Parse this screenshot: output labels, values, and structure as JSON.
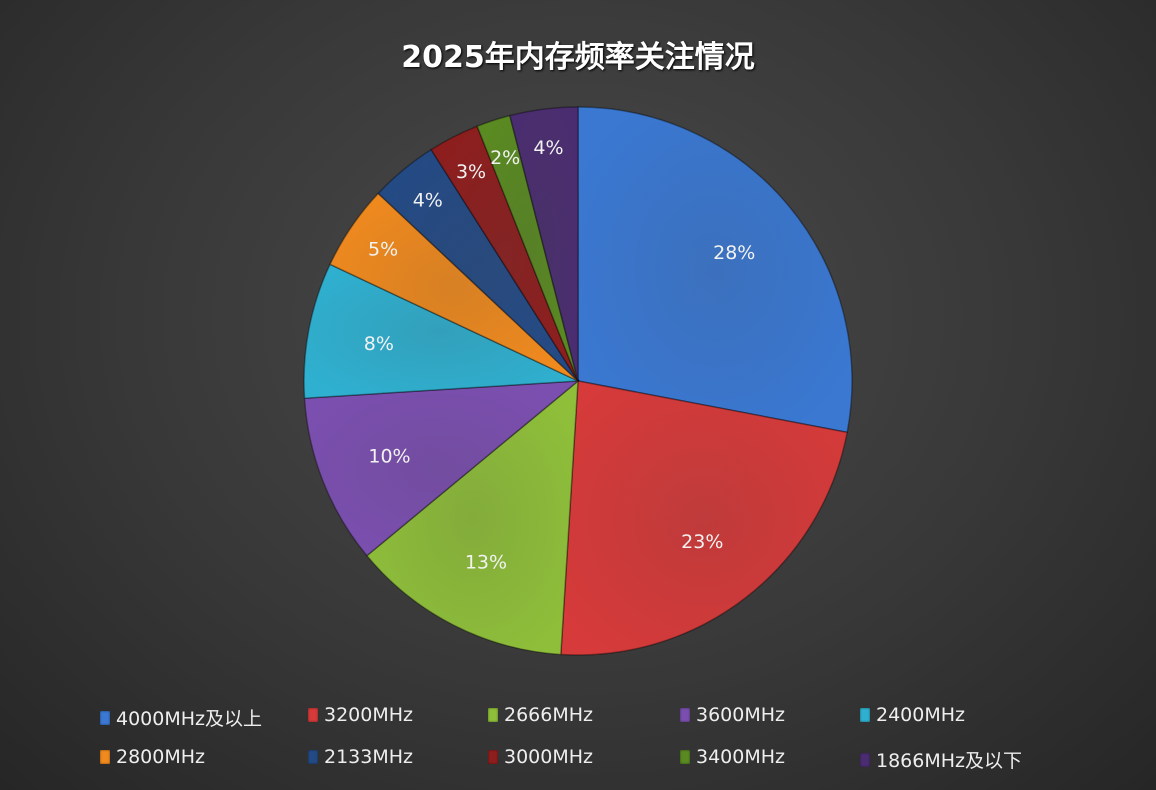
{
  "chart_data": {
    "type": "pie",
    "title": "2025年内存频率关注情况",
    "start_angle": "12 o'clock, clockwise",
    "legend_position": "bottom",
    "slices": [
      {
        "label": "4000MHz及以上",
        "value": 28,
        "data_label": "28%",
        "color": "#3a78d2"
      },
      {
        "label": "3200MHz",
        "value": 23,
        "data_label": "23%",
        "color": "#d63a3a"
      },
      {
        "label": "2666MHz",
        "value": 13,
        "data_label": "13%",
        "color": "#8fbf3a"
      },
      {
        "label": "3600MHz",
        "value": 10,
        "data_label": "10%",
        "color": "#7b4fb0"
      },
      {
        "label": "2400MHz",
        "value": 8,
        "data_label": "8%",
        "color": "#2fb0d0"
      },
      {
        "label": "2800MHz",
        "value": 5,
        "data_label": "5%",
        "color": "#f08a1e"
      },
      {
        "label": "2133MHz",
        "value": 4,
        "data_label": "4%",
        "color": "#244a85"
      },
      {
        "label": "3000MHz",
        "value": 3,
        "data_label": "3%",
        "color": "#8e1e1e"
      },
      {
        "label": "3400MHz",
        "value": 2,
        "data_label": "2%",
        "color": "#5a8a22"
      },
      {
        "label": "1866MHz及以下",
        "value": 4,
        "data_label": "4%",
        "color": "#4a2d70"
      }
    ]
  }
}
